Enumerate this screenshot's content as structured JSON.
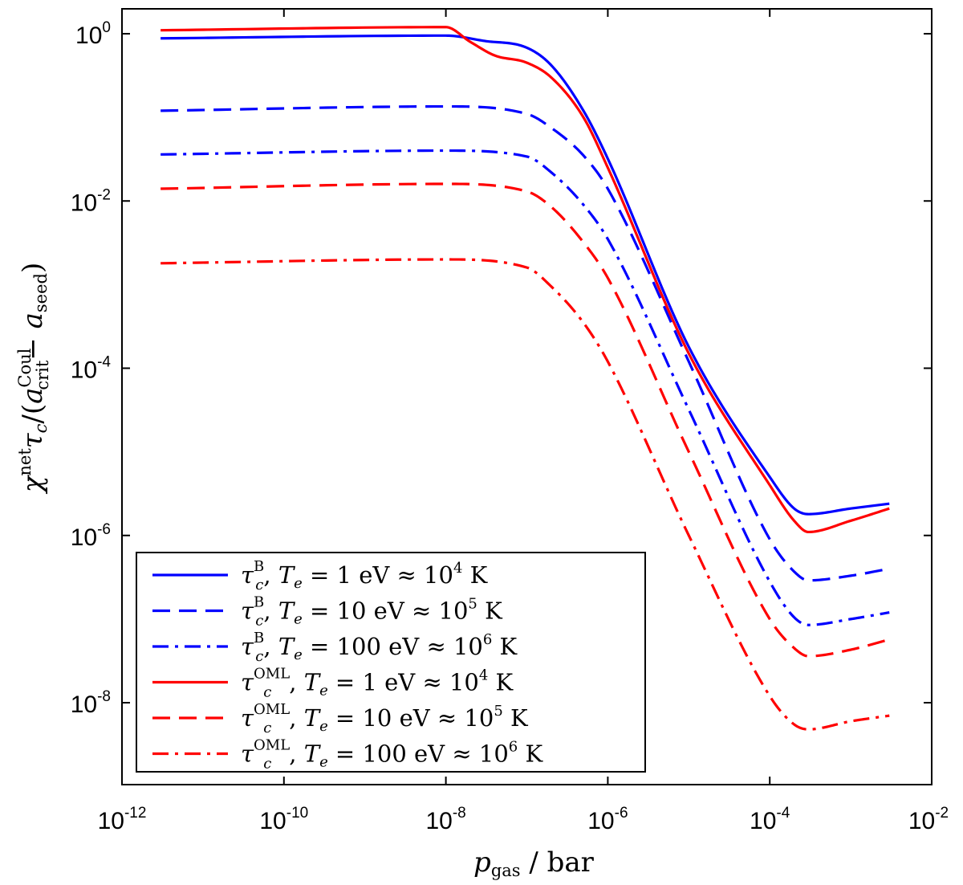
{
  "chart_data": {
    "type": "line",
    "title": "",
    "xlabel": "p_gas / bar",
    "ylabel": "χ^net τ_c / (a_crit^Coul − a_seed)",
    "xscale": "log",
    "yscale": "log",
    "xlim": [
      1e-12,
      0.01
    ],
    "ylim": [
      1e-09,
      2.0
    ],
    "x_ticks": [
      {
        "mant": "10",
        "exp": "-12"
      },
      {
        "mant": "10",
        "exp": "-10"
      },
      {
        "mant": "10",
        "exp": "-8"
      },
      {
        "mant": "10",
        "exp": "-6"
      },
      {
        "mant": "10",
        "exp": "-4"
      },
      {
        "mant": "10",
        "exp": "-2"
      }
    ],
    "y_ticks": [
      {
        "mant": "10",
        "exp": "0"
      },
      {
        "mant": "10",
        "exp": "-2"
      },
      {
        "mant": "10",
        "exp": "-4"
      },
      {
        "mant": "10",
        "exp": "-6"
      },
      {
        "mant": "10",
        "exp": "-8"
      }
    ],
    "grid": false,
    "legend_position": "bottom-left",
    "series": [
      {
        "name": "τ_c^B, T_e = 1 eV ≈ 10^4 K",
        "color": "#0000ff",
        "style": "solid",
        "x": [
          3e-12,
          1e-08,
          3e-08,
          1e-07,
          2e-07,
          5e-07,
          1e-06,
          1e-05,
          0.0001,
          0.0002,
          0.0003,
          0.001,
          0.003
        ],
        "y": [
          0.88,
          0.95,
          0.82,
          0.68,
          0.42,
          0.12,
          0.032,
          0.00018,
          5e-06,
          2.1e-06,
          1.8e-06,
          2.1e-06,
          2.4e-06
        ]
      },
      {
        "name": "τ_c^B, T_e = 10 eV ≈ 10^5 K",
        "color": "#0000ff",
        "style": "dashed",
        "x": [
          3e-12,
          1e-08,
          1e-07,
          2e-07,
          5e-07,
          1e-06,
          1e-05,
          0.0001,
          0.0002,
          0.0003,
          0.001,
          0.003
        ],
        "y": [
          0.12,
          0.135,
          0.11,
          0.075,
          0.035,
          0.014,
          0.00012,
          9e-07,
          3.7e-07,
          2.9e-07,
          3.3e-07,
          4e-07
        ]
      },
      {
        "name": "τ_c^B, T_e = 100 eV ≈ 10^6 K",
        "color": "#0000ff",
        "style": "dashdot",
        "x": [
          3e-12,
          1e-08,
          1e-07,
          2e-07,
          5e-07,
          1e-06,
          1e-05,
          0.0001,
          0.0002,
          0.0003,
          0.001,
          0.003
        ],
        "y": [
          0.036,
          0.04,
          0.034,
          0.022,
          0.009,
          0.0035,
          3.2e-05,
          2.8e-07,
          1.05e-07,
          8.5e-08,
          1e-07,
          1.2e-07
        ]
      },
      {
        "name": "τ_c^OML, T_e = 1 eV ≈ 10^4 K",
        "color": "#ff0000",
        "style": "solid",
        "x": [
          3e-12,
          1e-08,
          2e-08,
          4e-08,
          1e-07,
          2e-07,
          5e-07,
          1e-06,
          1e-05,
          0.0001,
          0.0002,
          0.0003,
          0.001,
          0.003
        ],
        "y": [
          1.1,
          1.2,
          0.8,
          0.55,
          0.45,
          0.3,
          0.1,
          0.025,
          0.00015,
          4e-06,
          1.5e-06,
          1.1e-06,
          1.5e-06,
          2.1e-06
        ]
      },
      {
        "name": "τ_c^OML, T_e = 10 eV ≈ 10^5 K",
        "color": "#ff0000",
        "style": "dashed",
        "x": [
          3e-12,
          1e-08,
          1e-07,
          2e-07,
          5e-07,
          1e-06,
          1e-05,
          0.0001,
          0.0002,
          0.0003,
          0.001,
          0.003
        ],
        "y": [
          0.014,
          0.016,
          0.013,
          0.0085,
          0.0032,
          0.0012,
          1e-05,
          1e-07,
          4.5e-08,
          3.6e-08,
          4.3e-08,
          5.7e-08
        ]
      },
      {
        "name": "τ_c^OML, T_e = 100 eV ≈ 10^6 K",
        "color": "#ff0000",
        "style": "dashdot",
        "x": [
          3e-12,
          1e-08,
          1e-07,
          2e-07,
          5e-07,
          1e-06,
          1e-05,
          0.0001,
          0.0002,
          0.0003,
          0.001,
          0.003
        ],
        "y": [
          0.0018,
          0.002,
          0.0016,
          0.00095,
          0.00035,
          0.00012,
          1e-06,
          1.2e-08,
          5.5e-09,
          4.8e-09,
          6e-09,
          7e-09
        ]
      }
    ]
  },
  "legend": {
    "entries": [
      {
        "sym": "τ",
        "sub": "c",
        "sup": "B",
        "rest_a": ", ",
        "te": "T",
        "te_sub": "e",
        "eq": " = 1 eV ≈ 10",
        "exp": "4",
        "unit": " K"
      },
      {
        "sym": "τ",
        "sub": "c",
        "sup": "B",
        "rest_a": ", ",
        "te": "T",
        "te_sub": "e",
        "eq": " = 10 eV ≈ 10",
        "exp": "5",
        "unit": " K"
      },
      {
        "sym": "τ",
        "sub": "c",
        "sup": "B",
        "rest_a": ", ",
        "te": "T",
        "te_sub": "e",
        "eq": " = 100 eV ≈ 10",
        "exp": "6",
        "unit": " K"
      },
      {
        "sym": "τ",
        "sub": "c",
        "sup": "OML",
        "rest_a": ", ",
        "te": "T",
        "te_sub": "e",
        "eq": " = 1 eV ≈ 10",
        "exp": "4",
        "unit": " K"
      },
      {
        "sym": "τ",
        "sub": "c",
        "sup": "OML",
        "rest_a": ", ",
        "te": "T",
        "te_sub": "e",
        "eq": " = 10 eV ≈ 10",
        "exp": "5",
        "unit": " K"
      },
      {
        "sym": "τ",
        "sub": "c",
        "sup": "OML",
        "rest_a": ", ",
        "te": "T",
        "te_sub": "e",
        "eq": " = 100 eV ≈ 10",
        "exp": "6",
        "unit": " K"
      }
    ]
  },
  "axis_text": {
    "x": {
      "p": "p",
      "p_sub": "gas",
      "slash": " / ",
      "unit": "bar"
    },
    "y": {
      "chi": "χ",
      "chi_sup": "net",
      "tau": "τ",
      "tau_sub": "c",
      "open": "/(",
      "a1": "a",
      "a1_sub": "crit",
      "a1_sup": "Coul",
      "minus": "− ",
      "a2": "a",
      "a2_sub": "seed",
      "close": ")"
    }
  }
}
